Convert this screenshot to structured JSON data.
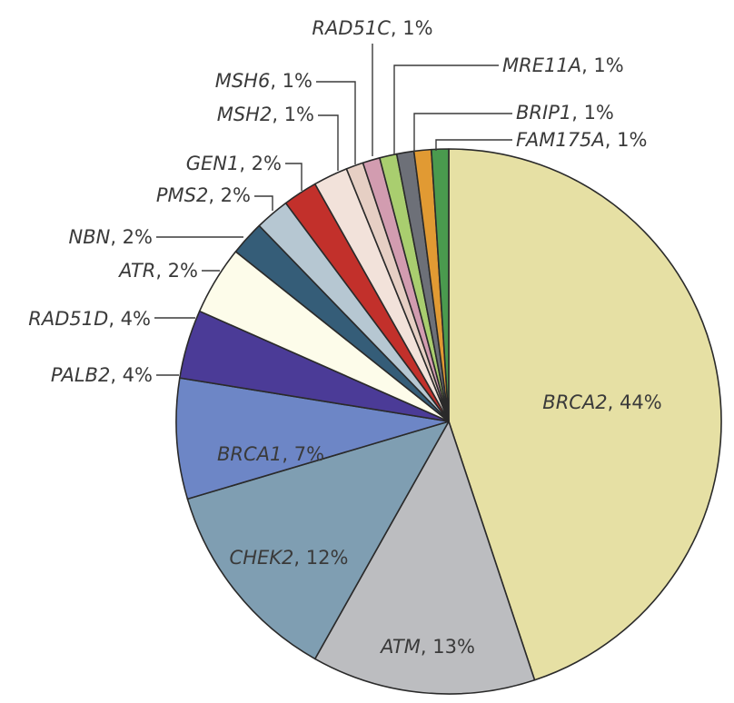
{
  "chart_data": {
    "type": "pie",
    "title": "",
    "start_angle_deg": 0,
    "direction": "clockwise",
    "slices": [
      {
        "gene": "BRCA2",
        "value": 44,
        "pct_label": ", 44%",
        "color": "#e6e0a4"
      },
      {
        "gene": "ATM",
        "value": 13,
        "pct_label": ", 13%",
        "color": "#bcbdc0"
      },
      {
        "gene": "CHEK2",
        "value": 12,
        "pct_label": ", 12%",
        "color": "#7f9eb2"
      },
      {
        "gene": "BRCA1",
        "value": 7,
        "pct_label": ", 7%",
        "color": "#6d86c6"
      },
      {
        "gene": "PALB2",
        "value": 4,
        "pct_label": ", 4%",
        "color": "#4b3b97"
      },
      {
        "gene": "RAD51D",
        "value": 4,
        "pct_label": ", 4%",
        "color": "#fdfcea"
      },
      {
        "gene": "ATR",
        "value": 2,
        "pct_label": ", 2%",
        "color": "#355d78"
      },
      {
        "gene": "NBN",
        "value": 2,
        "pct_label": ", 2%",
        "color": "#b6c7d2"
      },
      {
        "gene": "PMS2",
        "value": 2,
        "pct_label": ", 2%",
        "color": "#c2302b"
      },
      {
        "gene": "GEN1",
        "value": 2,
        "pct_label": ", 2%",
        "color": "#f2e2da"
      },
      {
        "gene": "MSH2",
        "value": 1,
        "pct_label": ", 1%",
        "color": "#e6cfc4"
      },
      {
        "gene": "MSH6",
        "value": 1,
        "pct_label": ", 1%",
        "color": "#d29cb0"
      },
      {
        "gene": "RAD51C",
        "value": 1,
        "pct_label": ", 1%",
        "color": "#a9ce6f"
      },
      {
        "gene": "MRE11A",
        "value": 1,
        "pct_label": ", 1%",
        "color": "#6d7078"
      },
      {
        "gene": "BRIP1",
        "value": 1,
        "pct_label": ", 1%",
        "color": "#e19a33"
      },
      {
        "gene": "FAM175A",
        "value": 1,
        "pct_label": ", 1%",
        "color": "#4a9a4e"
      }
    ]
  }
}
